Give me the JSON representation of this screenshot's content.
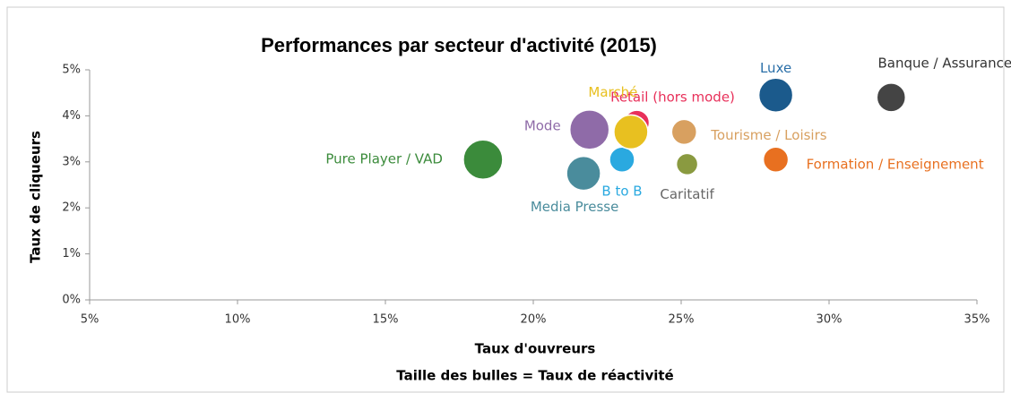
{
  "chart_data": {
    "type": "bubble",
    "title": "Performances par secteur d'activité (2015)",
    "x_label": "Taux d'ouvreurs",
    "subtitle": "Taille des bulles = Taux de réactivité",
    "y_label": "Taux de cliqueurs",
    "xlim": [
      5,
      35
    ],
    "xticks": [
      {
        "value": 5,
        "label": "5%"
      },
      {
        "value": 10,
        "label": "10%"
      },
      {
        "value": 15,
        "label": "15%"
      },
      {
        "value": 20,
        "label": "20%"
      },
      {
        "value": 25,
        "label": "25%"
      },
      {
        "value": 30,
        "label": "30%"
      },
      {
        "value": 35,
        "label": "35%"
      }
    ],
    "ylim": [
      0,
      5
    ],
    "yticks": [
      {
        "value": 0,
        "label": "0%"
      },
      {
        "value": 1,
        "label": "1%"
      },
      {
        "value": 2,
        "label": "2%"
      },
      {
        "value": 3,
        "label": "3%"
      },
      {
        "value": 4,
        "label": "4%"
      },
      {
        "value": 5,
        "label": "5%"
      }
    ],
    "series": [
      {
        "name": "Pure Player / VAD",
        "color": "#3b8b3b",
        "x": 18.3,
        "y": 3.05,
        "size": 22
      },
      {
        "name": "Mode",
        "color": "#8f6ba8",
        "x": 21.9,
        "y": 3.7,
        "size": 22
      },
      {
        "name": "Media Presse",
        "color": "#4a8c9c",
        "x": 21.7,
        "y": 2.75,
        "size": 19
      },
      {
        "name": "B to B",
        "color": "#2aa9e0",
        "x": 23.0,
        "y": 3.05,
        "size": 14
      },
      {
        "name": "Retail (hors mode)",
        "color": "#e8305a",
        "x": 23.5,
        "y": 3.85,
        "size": 14
      },
      {
        "name": "Marché",
        "color": "#e8c020",
        "x": 23.3,
        "y": 3.65,
        "size": 19
      },
      {
        "name": "Tourisme / Loisirs",
        "color": "#d8a060",
        "x": 25.1,
        "y": 3.65,
        "size": 14
      },
      {
        "name": "Caritatif",
        "color": "#8a9a40",
        "x": 25.2,
        "y": 2.95,
        "size": 12
      },
      {
        "name": "Luxe",
        "color": "#1b5a8c",
        "x": 28.2,
        "y": 4.45,
        "size": 19
      },
      {
        "name": "Formation / Enseignement",
        "color": "#e87020",
        "x": 28.2,
        "y": 3.05,
        "size": 14
      },
      {
        "name": "Banque / Assurance",
        "color": "#444444",
        "x": 32.1,
        "y": 4.4,
        "size": 16
      }
    ]
  }
}
